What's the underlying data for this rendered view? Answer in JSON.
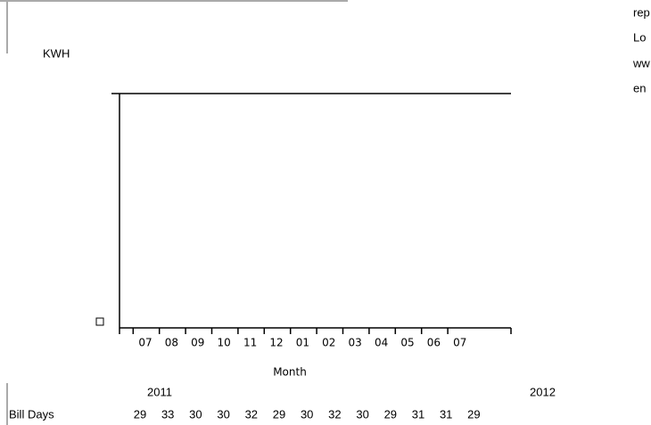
{
  "chart_data": {
    "type": "bar",
    "ylabel": "KWH",
    "xlabel": "Month",
    "categories": [
      "07",
      "08",
      "09",
      "10",
      "11",
      "12",
      "01",
      "02",
      "03",
      "04",
      "05",
      "06",
      "07"
    ],
    "years": [
      "2011",
      "2012"
    ],
    "bill_days": {
      "label": "Bill Days",
      "values": [
        29,
        33,
        30,
        30,
        32,
        29,
        30,
        32,
        30,
        29,
        31,
        31,
        29
      ]
    }
  },
  "side_text": [
    "rep",
    "Lo",
    "ww",
    "en"
  ]
}
